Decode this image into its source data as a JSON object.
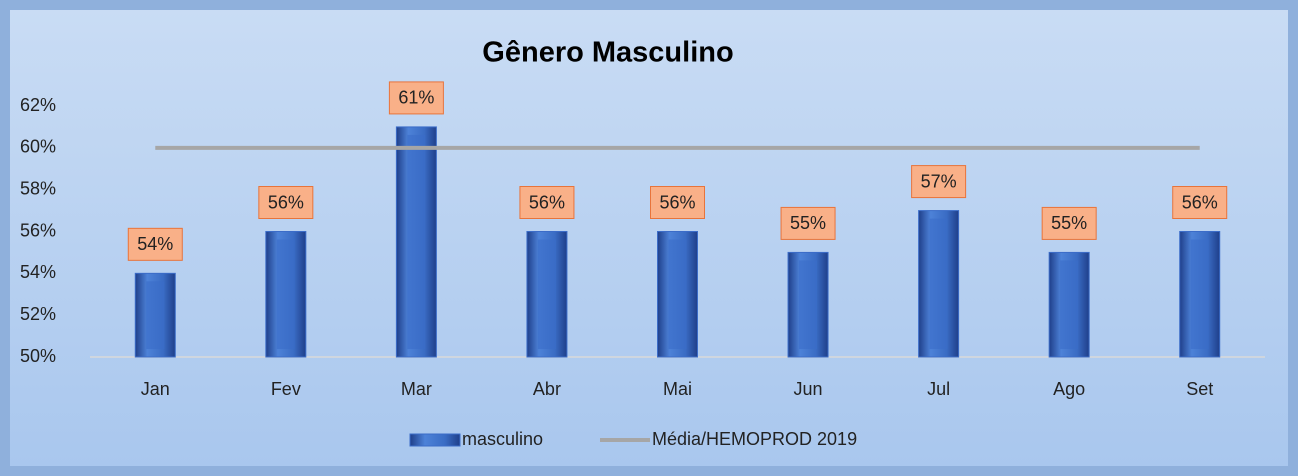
{
  "chart_data": {
    "type": "bar",
    "title": "Gênero Masculino",
    "categories": [
      "Jan",
      "Fev",
      "Mar",
      "Abr",
      "Mai",
      "Jun",
      "Jul",
      "Ago",
      "Set"
    ],
    "series": [
      {
        "name": "masculino",
        "type": "bar",
        "color": "#3b6cc8",
        "values": [
          54,
          56,
          61,
          56,
          56,
          55,
          57,
          55,
          56
        ],
        "value_labels": [
          "54%",
          "56%",
          "61%",
          "56%",
          "56%",
          "55%",
          "57%",
          "55%",
          "56%"
        ]
      },
      {
        "name": "Média/HEMOPROD 2019",
        "type": "line",
        "color": "#a6a6a6",
        "values": [
          60,
          60,
          60,
          60,
          60,
          60,
          60,
          60,
          60
        ]
      }
    ],
    "ylim": [
      50,
      62
    ],
    "yticks": [
      {
        "value": 50,
        "label": "50%"
      },
      {
        "value": 52,
        "label": "52%"
      },
      {
        "value": 54,
        "label": "54%"
      },
      {
        "value": 56,
        "label": "56%"
      },
      {
        "value": 58,
        "label": "58%"
      },
      {
        "value": 60,
        "label": "60%"
      },
      {
        "value": 62,
        "label": "62%"
      }
    ],
    "grid": false
  }
}
